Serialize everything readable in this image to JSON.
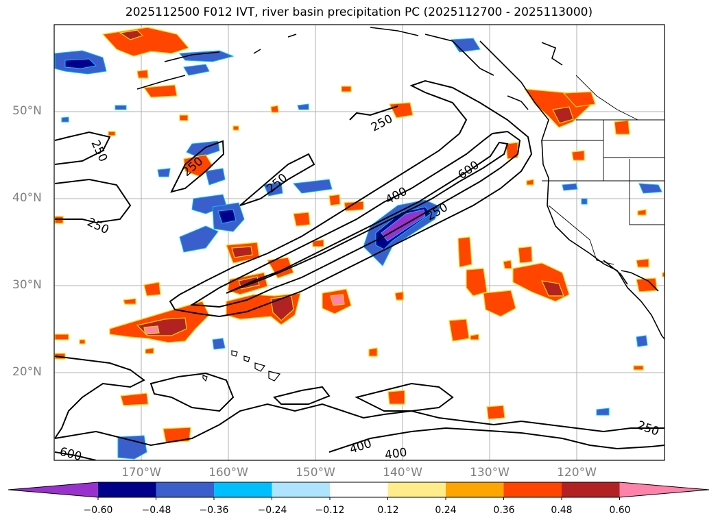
{
  "title": "2025112500 F012 IVT, river basin precipitation PC (2025112700 - 2025113000)",
  "latitude_labels": [
    {
      "text": "50°N",
      "deg": 50
    },
    {
      "text": "40°N",
      "deg": 40
    },
    {
      "text": "30°N",
      "deg": 30
    },
    {
      "text": "20°N",
      "deg": 20
    }
  ],
  "longitude_labels": [
    {
      "text": "170°W",
      "deg": -170
    },
    {
      "text": "160°W",
      "deg": -160
    },
    {
      "text": "150°W",
      "deg": -150
    },
    {
      "text": "140°W",
      "deg": -140
    },
    {
      "text": "130°W",
      "deg": -130
    },
    {
      "text": "120°W",
      "deg": -120
    }
  ],
  "ivt_contour_labels": [
    "250",
    "250",
    "250",
    "250",
    "400",
    "600",
    "250",
    "400",
    "400",
    "250",
    "600"
  ],
  "colorbar": {
    "ticks": [
      "−0.60",
      "−0.48",
      "−0.36",
      "−0.24",
      "−0.12",
      "0.12",
      "0.24",
      "0.36",
      "0.48",
      "0.60"
    ],
    "colors": [
      "#9932cc",
      "#00008b",
      "#3a5fcd",
      "#00bfff",
      "#aee4ff",
      "#ffffff",
      "#ffec8b",
      "#ffa500",
      "#ff4500",
      "#b22222",
      "#ff82ab"
    ],
    "extend": "both"
  },
  "colors": {
    "grid": "#b0b0b0",
    "contour": "#000000",
    "coast": "#000000",
    "tick_label": "#808080"
  }
}
